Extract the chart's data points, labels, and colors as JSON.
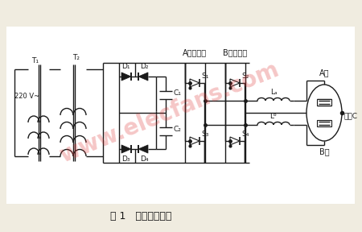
{
  "title": "图 1   功率控制电路",
  "label_A_inverter": "A相逆变器",
  "label_B_inverter": "B相逆变器",
  "label_220V": "220 V~",
  "label_T1": "T₁",
  "label_T2": "T₂",
  "label_D1": "D₁",
  "label_D2": "D₂",
  "label_D3": "D₃",
  "label_D4": "D₄",
  "label_C1": "C₁",
  "label_C2": "C₂",
  "label_S1": "S₁",
  "label_S2": "S₂",
  "label_S3": "S₃",
  "label_S4": "S₄",
  "label_La": "Lₐ",
  "label_Lb": "Lᵇ",
  "label_A_phase": "A相",
  "label_B_phase": "B相",
  "label_arc_C": "弧极C",
  "bg_color": "#f0ece0",
  "line_color": "#1a1a1a",
  "fig_width": 4.5,
  "fig_height": 2.88
}
